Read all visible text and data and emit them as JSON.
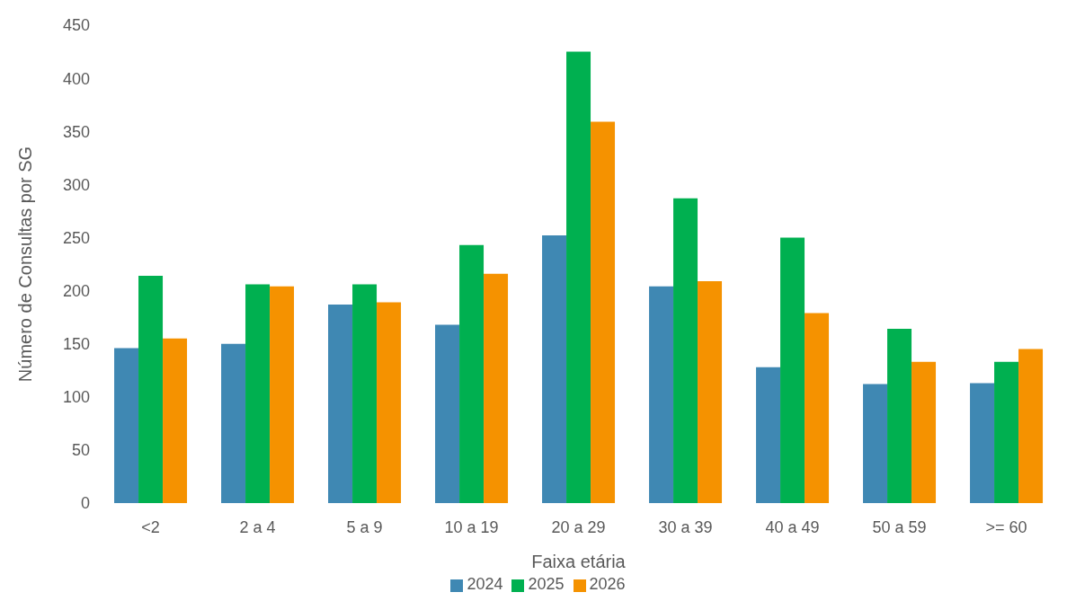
{
  "chart_data": {
    "type": "bar",
    "xlabel": "Faixa etária",
    "ylabel": "Número de Consultas por SG",
    "categories": [
      "<2",
      "2 a 4",
      "5 a 9",
      "10 a 19",
      "20 a 29",
      "30 a 39",
      "40 a 49",
      "50 a 59",
      ">= 60"
    ],
    "series": [
      {
        "name": "2024",
        "color": "#3f88b3",
        "values": [
          146,
          150,
          187,
          168,
          252,
          204,
          128,
          112,
          113
        ]
      },
      {
        "name": "2025",
        "color": "#00b050",
        "values": [
          214,
          206,
          206,
          243,
          425,
          287,
          250,
          164,
          133
        ]
      },
      {
        "name": "2026",
        "color": "#f59200",
        "values": [
          155,
          204,
          189,
          216,
          359,
          209,
          179,
          133,
          145
        ]
      }
    ],
    "ylim": [
      0,
      450
    ],
    "yticks": [
      0,
      50,
      100,
      150,
      200,
      250,
      300,
      350,
      400,
      450
    ],
    "grid": false,
    "legend": "bottom"
  }
}
